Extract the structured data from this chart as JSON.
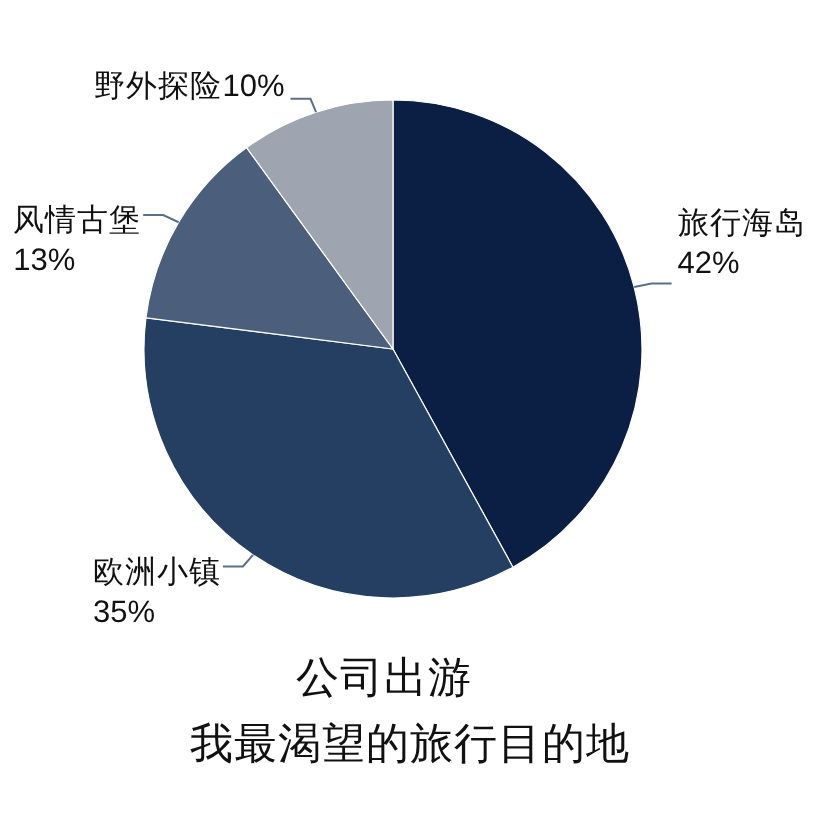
{
  "chart_data": {
    "type": "pie",
    "title": "公司出游",
    "subtitle": "我最渴望的旅行目的地",
    "categories": [
      "旅行海岛",
      "欧洲小镇",
      "风情古堡",
      "野外探险"
    ],
    "values": [
      42,
      35,
      13,
      10
    ],
    "value_labels": [
      "42%",
      "35%",
      "13%",
      "10%"
    ],
    "colors": [
      "#0b1f45",
      "#243f62",
      "#4b5f7c",
      "#9ea5b0"
    ]
  }
}
